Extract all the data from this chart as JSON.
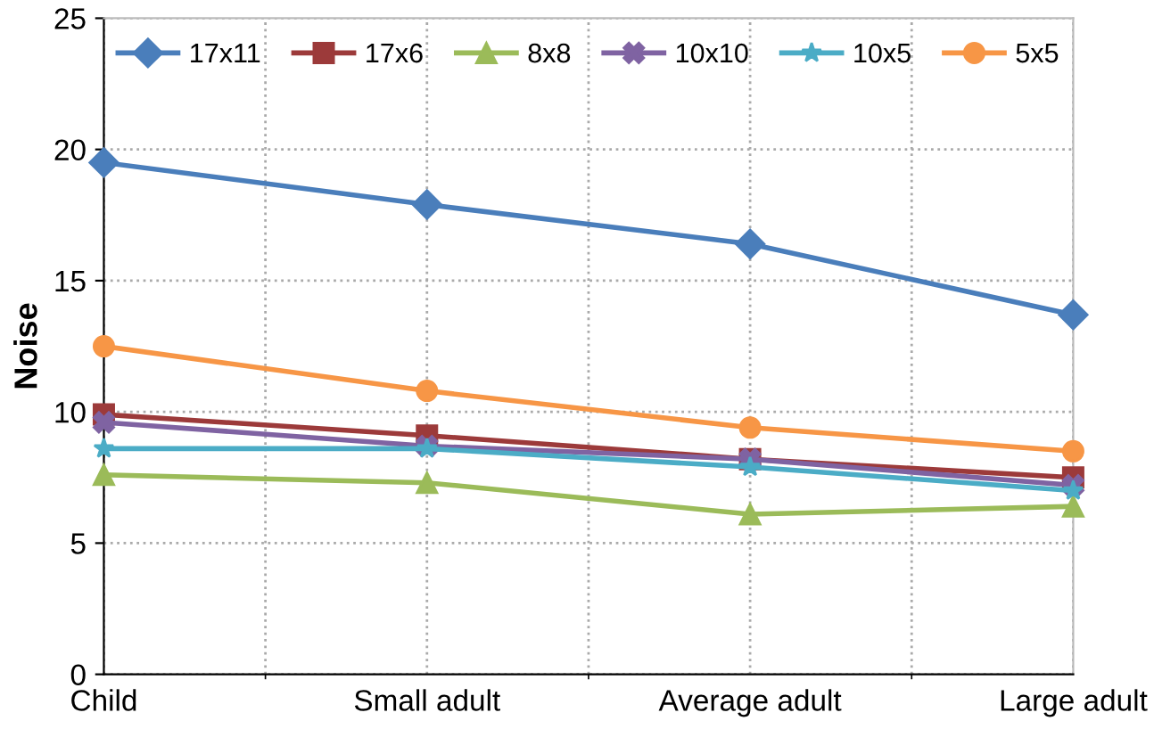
{
  "chart_data": {
    "type": "line",
    "ylabel": "Noise",
    "categories": [
      "Child",
      "Small adult",
      "Average adult",
      "Large adult"
    ],
    "series": [
      {
        "name": "17x11",
        "color": "#4a7ebb",
        "marker": "diamond",
        "values": [
          19.5,
          17.9,
          16.4,
          13.7
        ]
      },
      {
        "name": "17x6",
        "color": "#9c3a3a",
        "marker": "square",
        "values": [
          9.9,
          9.1,
          8.2,
          7.5
        ]
      },
      {
        "name": "8x8",
        "color": "#9bbb59",
        "marker": "triangle",
        "values": [
          7.6,
          7.3,
          6.1,
          6.4
        ]
      },
      {
        "name": "10x10",
        "color": "#7f63a2",
        "marker": "cross",
        "values": [
          9.6,
          8.7,
          8.2,
          7.2
        ]
      },
      {
        "name": "10x5",
        "color": "#4bacc6",
        "marker": "star",
        "values": [
          8.6,
          8.6,
          7.9,
          7.0
        ]
      },
      {
        "name": "5x5",
        "color": "#f79646",
        "marker": "circle",
        "values": [
          12.5,
          10.8,
          9.4,
          8.5
        ]
      }
    ],
    "ylim": [
      0,
      25
    ],
    "yticks": [
      0,
      5,
      10,
      15,
      20,
      25
    ],
    "grid": true,
    "legend": "top"
  }
}
